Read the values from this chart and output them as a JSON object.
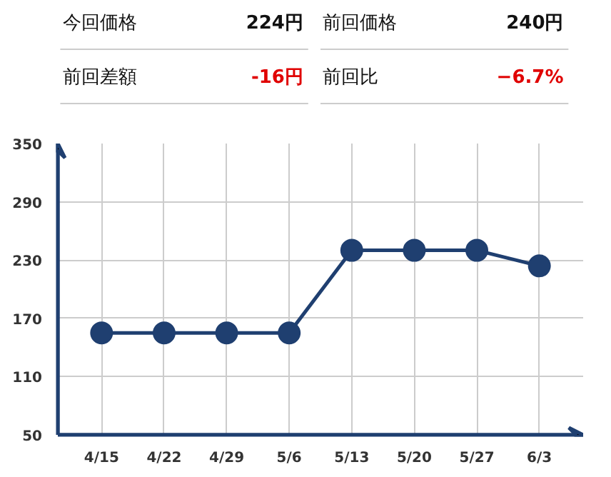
{
  "chart_data": {
    "type": "line",
    "categories": [
      "4/15",
      "4/22",
      "4/29",
      "5/6",
      "5/13",
      "5/20",
      "5/27",
      "6/3"
    ],
    "series": [
      {
        "color": "#1f3f70",
        "values": [
          155,
          155,
          155,
          155,
          240,
          240,
          240,
          224
        ]
      }
    ],
    "ylim": [
      50,
      350
    ],
    "yticks": [
      50,
      110,
      170,
      230,
      290,
      350
    ],
    "grid": true,
    "marker": "circle",
    "line_style": "solid",
    "annotations": [
      "今回価格",
      "224円",
      "前回価格",
      "240円",
      "前回差額",
      "-16円",
      "前回比",
      "−6.7%"
    ]
  }
}
